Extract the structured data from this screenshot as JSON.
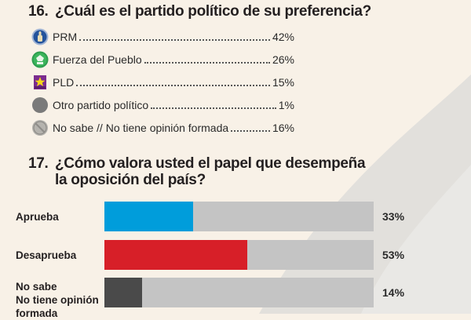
{
  "q16": {
    "number": "16.",
    "title": "¿Cuál es el partido político de su preferencia?",
    "items": [
      {
        "icon": "prm-logo-icon",
        "label": "PRM",
        "value": "42%",
        "percent": 42,
        "color": "#2f5fa8"
      },
      {
        "icon": "fuerza-del-pueblo-logo-icon",
        "label": "Fuerza del Pueblo",
        "value": "26%",
        "percent": 26,
        "color": "#2e9e4f"
      },
      {
        "icon": "pld-logo-icon",
        "label": "PLD",
        "value": "15%",
        "percent": 15,
        "color": "#7b2c8e"
      },
      {
        "icon": "gray-circle-icon",
        "label": "Otro partido político",
        "value": "1%",
        "percent": 1,
        "color": "#7a7a7a"
      },
      {
        "icon": "no-symbol-icon",
        "label": "No sabe // No tiene opinión formada",
        "value": "16%",
        "percent": 16,
        "color": "#b5b5b5"
      }
    ]
  },
  "q17": {
    "number": "17.",
    "title_line1": "¿Cómo valora usted el papel que desempeña",
    "title_line2": "la oposición del país?"
  },
  "chart_data": [
    {
      "type": "table",
      "title": "16. ¿Cuál es el partido político de su preferencia?",
      "categories": [
        "PRM",
        "Fuerza del Pueblo",
        "PLD",
        "Otro partido político",
        "No sabe // No tiene opinión formada"
      ],
      "values": [
        42,
        26,
        15,
        1,
        16
      ],
      "unit": "%"
    },
    {
      "type": "bar",
      "orientation": "horizontal",
      "title": "17. ¿Cómo valora usted el papel que desempeña la oposición del país?",
      "categories": [
        "Aprueba",
        "Desaprueba",
        "No sabe / No tiene opinión formada"
      ],
      "category_lines": [
        [
          "Aprueba"
        ],
        [
          "Desaprueba"
        ],
        [
          "No sabe",
          "No tiene opinión",
          "formada"
        ]
      ],
      "values": [
        33,
        53,
        14
      ],
      "value_labels": [
        "33%",
        "53%",
        "14%"
      ],
      "colors": [
        "#009ddb",
        "#d71f28",
        "#4a4a4a"
      ],
      "track_color": "#c4c4c4",
      "xlim": [
        0,
        100
      ],
      "xlabel": "",
      "ylabel": "",
      "grid": false,
      "legend": "none"
    }
  ]
}
